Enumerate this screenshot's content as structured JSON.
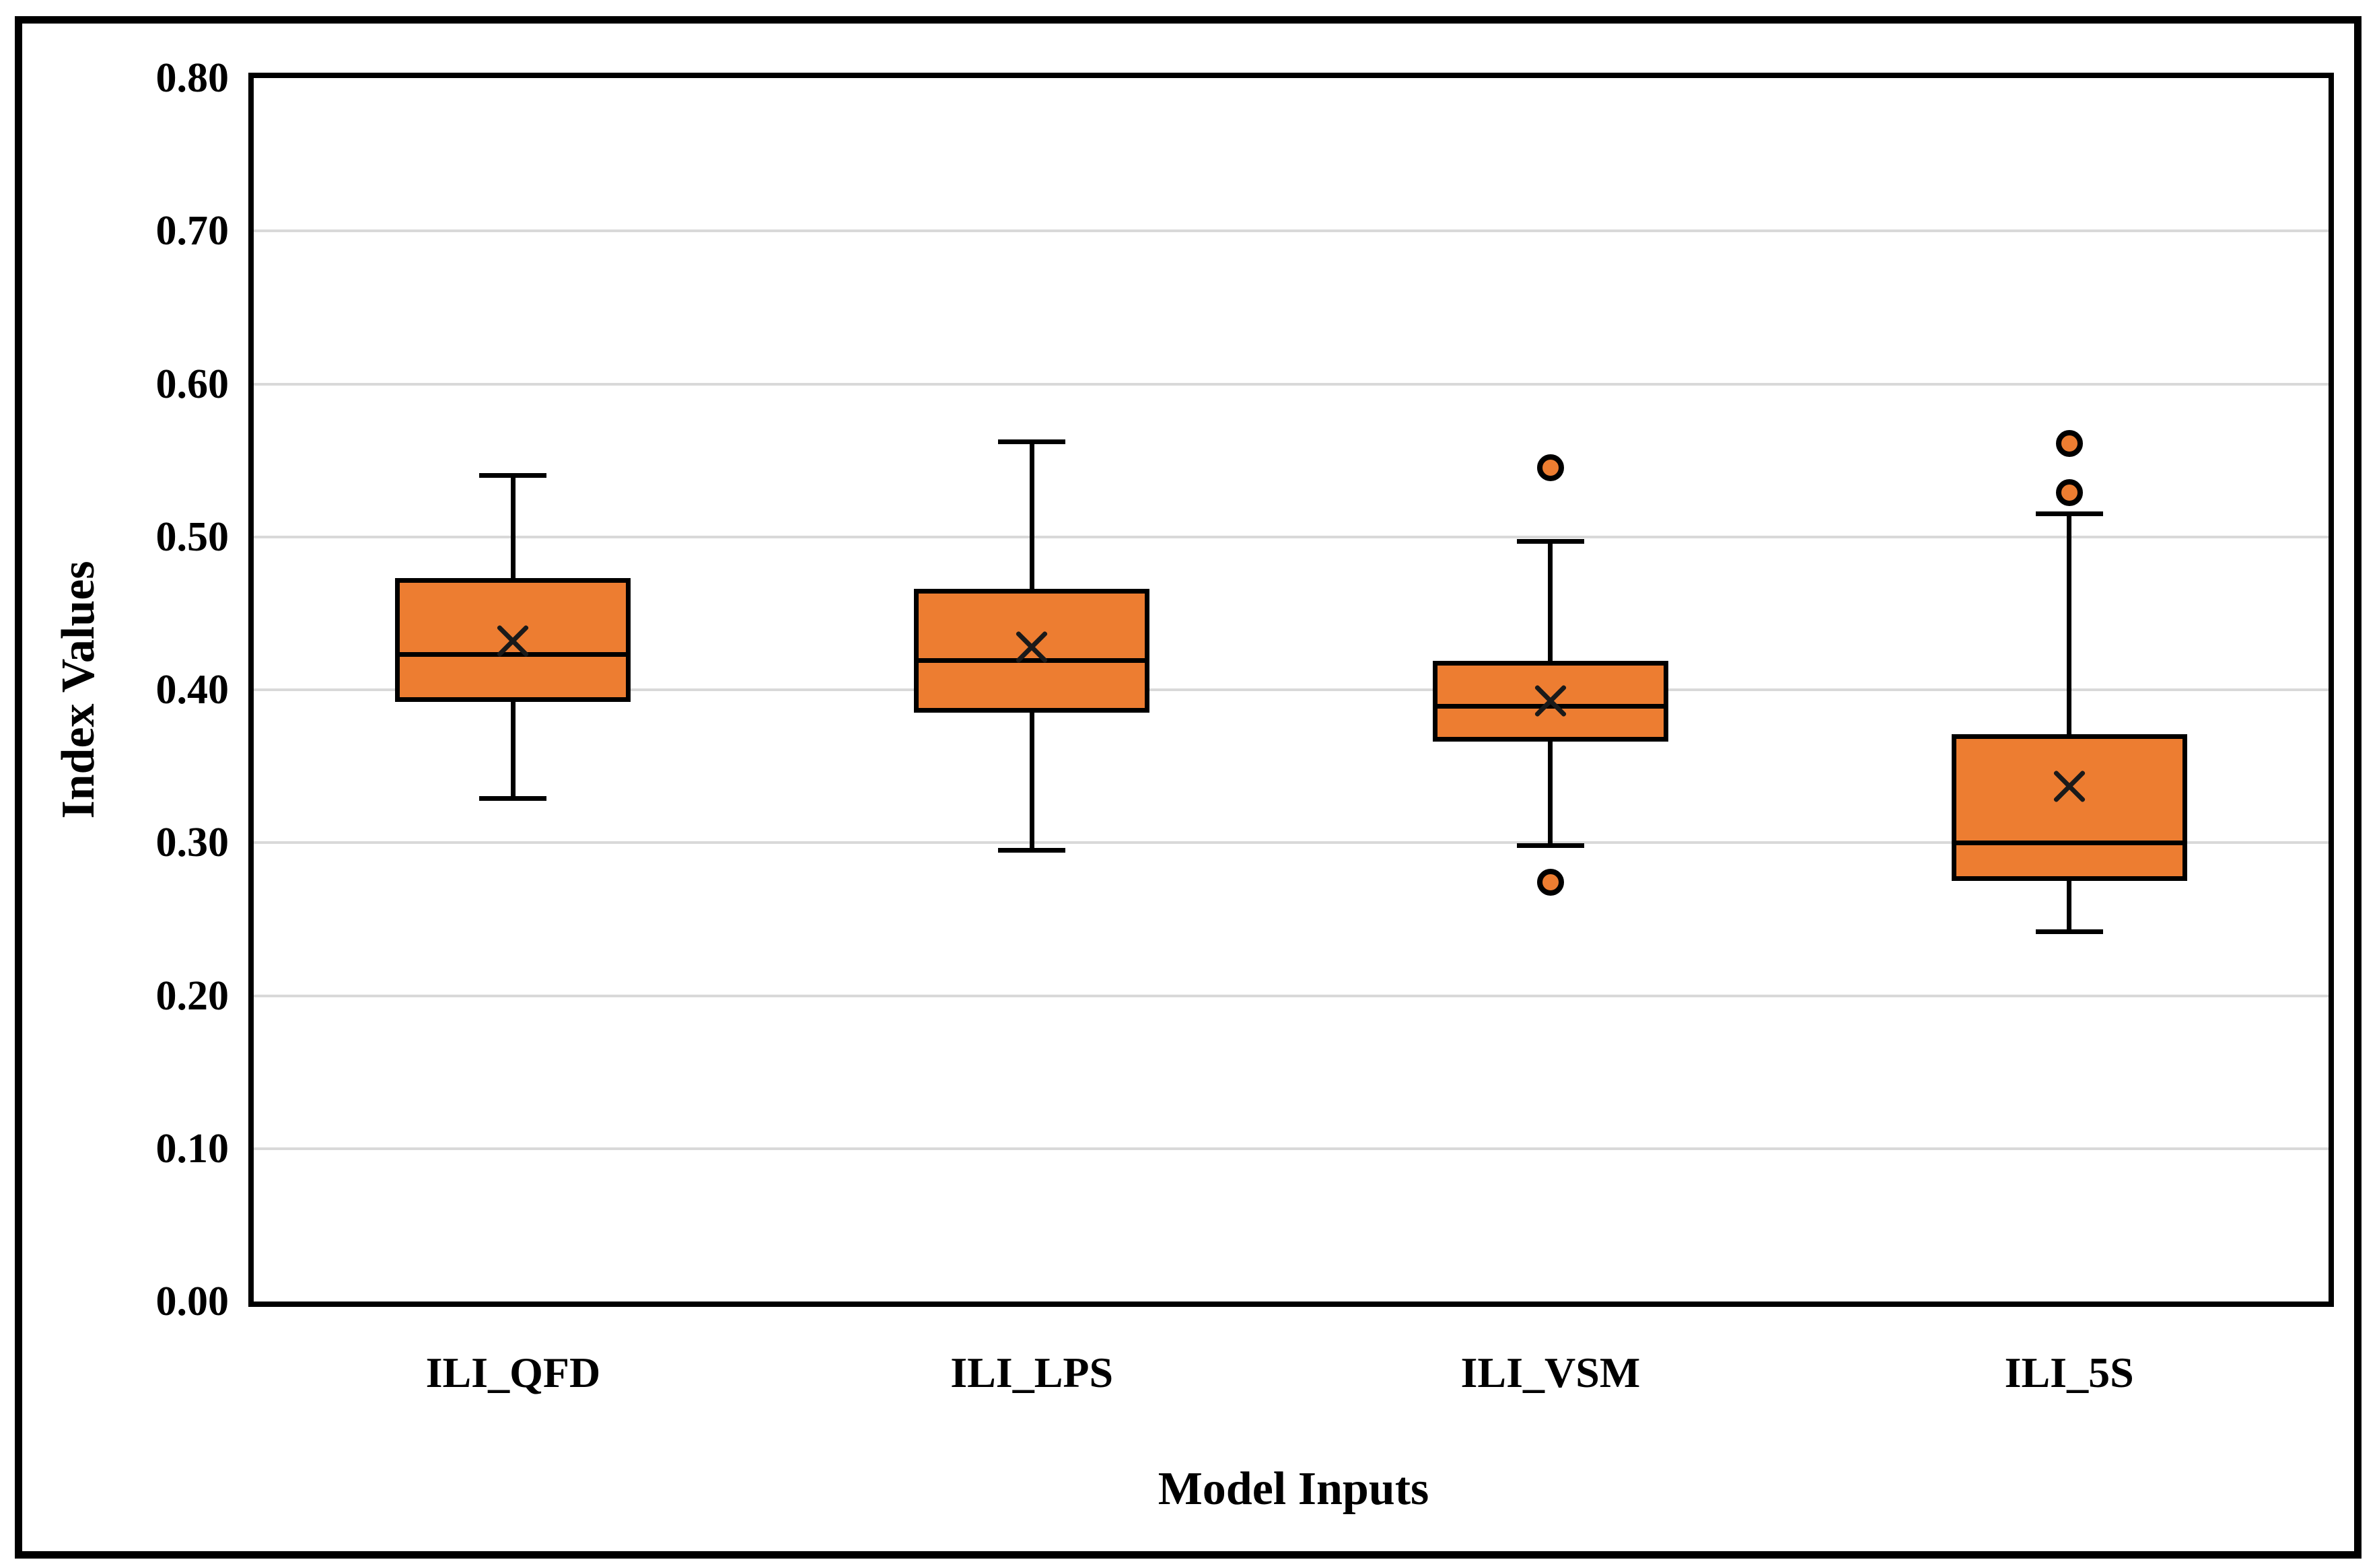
{
  "figure": {
    "background": "#FFFFFF",
    "border_color": "#000000"
  },
  "chart_data": {
    "type": "boxplot",
    "title": "",
    "xlabel": "Model Inputs",
    "ylabel": "Index Values",
    "categories": [
      "ILI_QFD",
      "ILI_LPS",
      "ILI_VSM",
      "ILI_5S"
    ],
    "y_axis": {
      "min": 0.0,
      "max": 0.8,
      "step": 0.1,
      "ticks": [
        {
          "label": "0.00",
          "value": 0.0
        },
        {
          "label": "0.10",
          "value": 0.1
        },
        {
          "label": "0.20",
          "value": 0.2
        },
        {
          "label": "0.30",
          "value": 0.3
        },
        {
          "label": "0.40",
          "value": 0.4
        },
        {
          "label": "0.50",
          "value": 0.5
        },
        {
          "label": "0.60",
          "value": 0.6
        },
        {
          "label": "0.70",
          "value": 0.7
        },
        {
          "label": "0.80",
          "value": 0.8
        }
      ]
    },
    "grid": "horizontal",
    "legend": "none",
    "series": [
      {
        "name": "ILI_QFD",
        "whisker_low": 0.329,
        "q1": 0.392,
        "median": 0.423,
        "mean": 0.432,
        "q3": 0.473,
        "whisker_high": 0.54,
        "outliers": []
      },
      {
        "name": "ILI_LPS",
        "whisker_low": 0.295,
        "q1": 0.385,
        "median": 0.419,
        "mean": 0.428,
        "q3": 0.466,
        "whisker_high": 0.562,
        "outliers": []
      },
      {
        "name": "ILI_VSM",
        "whisker_low": 0.298,
        "q1": 0.366,
        "median": 0.389,
        "mean": 0.393,
        "q3": 0.419,
        "whisker_high": 0.497,
        "outliers": [
          0.545,
          0.274
        ]
      },
      {
        "name": "ILI_5S",
        "whisker_low": 0.242,
        "q1": 0.275,
        "median": 0.3,
        "mean": 0.337,
        "q3": 0.371,
        "whisker_high": 0.515,
        "outliers": [
          0.561,
          0.529
        ]
      }
    ],
    "colors": {
      "box_fill": "#ED7D31",
      "box_border": "#000000",
      "whisker": "#000000",
      "median": "#000000",
      "mean_marker": "#1a1a1a",
      "outlier_fill": "#ED7D31",
      "outlier_border": "#000000",
      "gridline": "#D9D9D9",
      "axis": "#000000",
      "text": "#000000"
    }
  }
}
